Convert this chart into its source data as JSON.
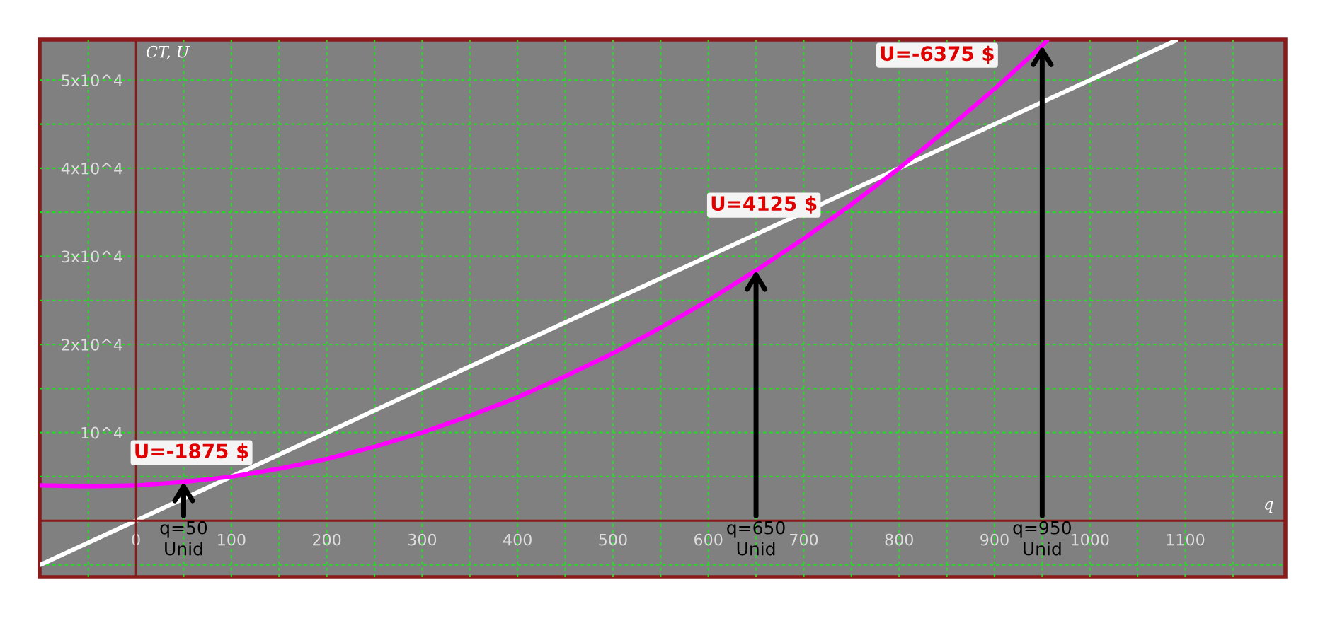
{
  "chart_data": {
    "type": "line",
    "xlabel": "q",
    "ylabel": "CT, U",
    "series": [
      {
        "color": "#ffffff",
        "x": [
          -100,
          1090
        ],
        "values": [
          -5000,
          54500
        ]
      },
      {
        "color": "#ff00ff",
        "x": [
          -100,
          -50,
          0,
          50,
          100,
          150,
          200,
          250,
          300,
          350,
          400,
          450,
          500,
          550,
          600,
          650,
          700,
          750,
          800,
          850,
          900,
          950,
          955
        ],
        "values": [
          4000,
          3900,
          4000,
          4400,
          5000,
          5900,
          7000,
          8400,
          10000,
          11900,
          14000,
          16400,
          19000,
          21900,
          25000,
          28400,
          32000,
          35900,
          40000,
          44400,
          49000,
          53900,
          54500
        ]
      }
    ],
    "xlim": [
      -101,
      1205
    ],
    "ylim": [
      -6400,
      54600
    ],
    "xticks": [
      {
        "value": -50,
        "label": null
      },
      0,
      {
        "value": 50,
        "label": null
      },
      100,
      {
        "value": 150,
        "label": null
      },
      200,
      {
        "value": 250,
        "label": null
      },
      300,
      {
        "value": 350,
        "label": null
      },
      400,
      {
        "value": 450,
        "label": null
      },
      500,
      {
        "value": 550,
        "label": null
      },
      600,
      {
        "value": 650,
        "label": null
      },
      700,
      {
        "value": 750,
        "label": null
      },
      800,
      {
        "value": 850,
        "label": null
      },
      900,
      {
        "value": 950,
        "label": null
      },
      1000,
      {
        "value": 1050,
        "label": null
      },
      1100,
      {
        "value": 1150,
        "label": null
      }
    ],
    "yticks": [
      {
        "value": -5000,
        "label": null
      },
      {
        "value": 5000,
        "label": null
      },
      {
        "value": 10000,
        "label": "10^4"
      },
      {
        "value": 15000,
        "label": null
      },
      {
        "value": 20000,
        "label": "2x10^4"
      },
      {
        "value": 25000,
        "label": null
      },
      {
        "value": 30000,
        "label": "3x10^4"
      },
      {
        "value": 35000,
        "label": null
      },
      {
        "value": 40000,
        "label": "4x10^4"
      },
      {
        "value": 45000,
        "label": null
      },
      {
        "value": 50000,
        "label": "5x10^4"
      }
    ],
    "grid": true,
    "annotations": [
      {
        "text": "U=-1875 $",
        "x": 50,
        "y": 4400
      },
      {
        "text": "U=4125 $",
        "x": 650,
        "y": 28400
      },
      {
        "text": "U=-6375 $",
        "x": 950,
        "y": 53900
      },
      {
        "text": "q=50\nUnid",
        "x": 50,
        "y": 4400
      },
      {
        "text": "q=650\nUnid",
        "x": 650,
        "y": 28400
      },
      {
        "text": "q=950\nUnid",
        "x": 950,
        "y": 53900
      }
    ]
  }
}
